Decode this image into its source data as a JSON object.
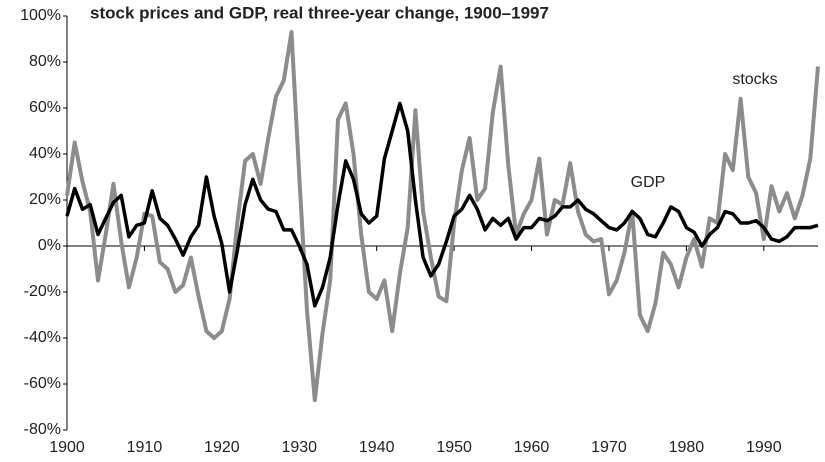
{
  "chart_data": {
    "type": "line",
    "title": "stock prices and GDP, real three-year change, 1900–1997",
    "x": [
      1900,
      1901,
      1902,
      1903,
      1904,
      1905,
      1906,
      1907,
      1908,
      1909,
      1910,
      1911,
      1912,
      1913,
      1914,
      1915,
      1916,
      1917,
      1918,
      1919,
      1920,
      1921,
      1922,
      1923,
      1924,
      1925,
      1926,
      1927,
      1928,
      1929,
      1930,
      1931,
      1932,
      1933,
      1934,
      1935,
      1936,
      1937,
      1938,
      1939,
      1940,
      1941,
      1942,
      1943,
      1944,
      1945,
      1946,
      1947,
      1948,
      1949,
      1950,
      1951,
      1952,
      1953,
      1954,
      1955,
      1956,
      1957,
      1958,
      1959,
      1960,
      1961,
      1962,
      1963,
      1964,
      1965,
      1966,
      1967,
      1968,
      1969,
      1970,
      1971,
      1972,
      1973,
      1974,
      1975,
      1976,
      1977,
      1978,
      1979,
      1980,
      1981,
      1982,
      1983,
      1984,
      1985,
      1986,
      1987,
      1988,
      1989,
      1990,
      1991,
      1992,
      1993,
      1994,
      1995,
      1996,
      1997
    ],
    "series": [
      {
        "name": "stocks",
        "color": "#8c8c8c",
        "values": [
          22,
          45,
          28,
          15,
          -15,
          5,
          27,
          2,
          -18,
          -5,
          14,
          13,
          -7,
          -10,
          -20,
          -17,
          -5,
          -22,
          -37,
          -40,
          -37,
          -23,
          10,
          37,
          40,
          27,
          47,
          65,
          72,
          93,
          30,
          -28,
          -67,
          -38,
          -15,
          55,
          62,
          40,
          5,
          -20,
          -23,
          -15,
          -37,
          -12,
          8,
          59,
          15,
          -5,
          -22,
          -24,
          10,
          33,
          47,
          20,
          25,
          58,
          78,
          35,
          5,
          14,
          20,
          38,
          5,
          20,
          18,
          36,
          15,
          5,
          2,
          3,
          -21,
          -15,
          -3,
          15,
          -30,
          -37,
          -25,
          -3,
          -8,
          -18,
          -5,
          3,
          -9,
          12,
          10,
          40,
          33,
          64,
          30,
          23,
          3,
          26,
          15,
          23,
          12,
          22,
          38,
          78
        ]
      },
      {
        "name": "GDP",
        "color": "#000000",
        "values": [
          13,
          25,
          16,
          18,
          5,
          12,
          19,
          22,
          4,
          9,
          10,
          24,
          12,
          9,
          3,
          -4,
          4,
          9,
          30,
          13,
          1,
          -20,
          -2,
          18,
          29,
          20,
          16,
          15,
          7,
          7,
          0,
          -8,
          -26,
          -18,
          -5,
          18,
          37,
          29,
          14,
          10,
          13,
          38,
          50,
          62,
          50,
          20,
          -5,
          -13,
          -8,
          2,
          13,
          16,
          22,
          16,
          7,
          12,
          9,
          12,
          3,
          8,
          8,
          12,
          11,
          13,
          17,
          17,
          20,
          16,
          14,
          11,
          8,
          7,
          10,
          15,
          12,
          5,
          4,
          10,
          17,
          15,
          8,
          6,
          0,
          5,
          8,
          15,
          14,
          10,
          10,
          11,
          8,
          3,
          2,
          4,
          8,
          8,
          8,
          9
        ]
      }
    ],
    "xlim": [
      1900,
      1997
    ],
    "xticks": [
      1900,
      1910,
      1920,
      1930,
      1940,
      1950,
      1960,
      1970,
      1980,
      1990
    ],
    "ylim": [
      -80,
      100
    ],
    "yticks": [
      {
        "value": -80,
        "label": "-80%"
      },
      {
        "value": -60,
        "label": "-60%"
      },
      {
        "value": -40,
        "label": "-40%"
      },
      {
        "value": -20,
        "label": "-20%"
      },
      {
        "value": 0,
        "label": "0%"
      },
      {
        "value": 20,
        "label": "20%"
      },
      {
        "value": 40,
        "label": "40%"
      },
      {
        "value": 60,
        "label": "60%"
      },
      {
        "value": 80,
        "label": "80%"
      },
      {
        "value": 100,
        "label": "100%"
      }
    ],
    "grid": false
  }
}
